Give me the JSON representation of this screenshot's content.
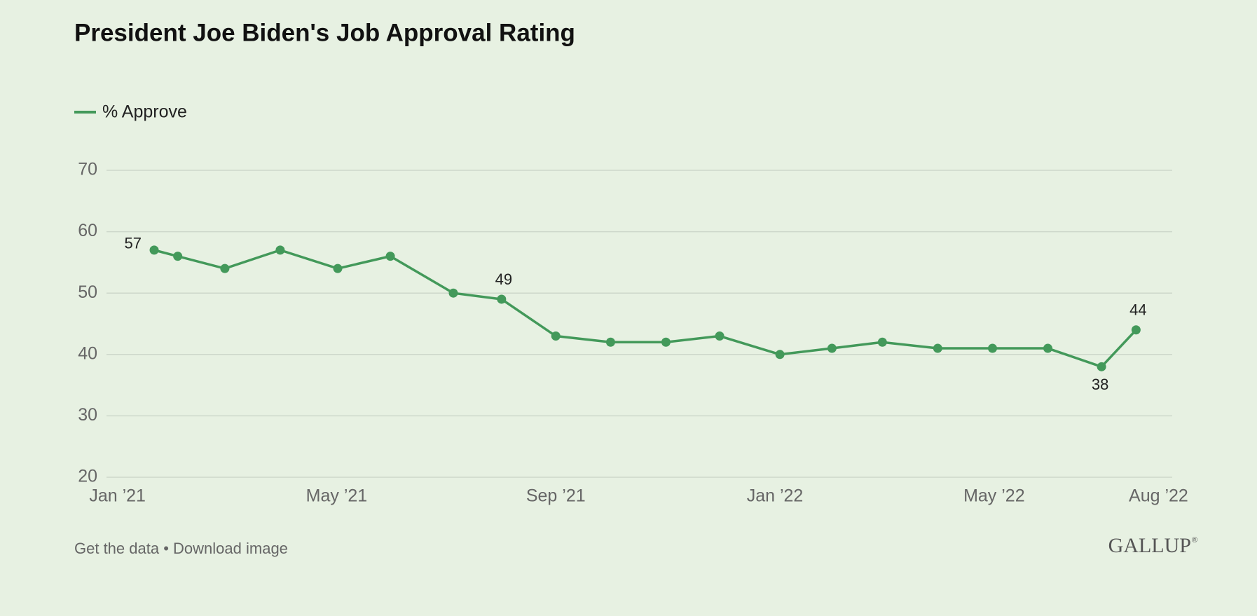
{
  "chart_data": {
    "type": "line",
    "title": "President Joe Biden's Job Approval Rating",
    "x": [
      0.67,
      1.1,
      1.96,
      2.97,
      4.02,
      4.98,
      6.13,
      7.01,
      8.0,
      9.0,
      10.01,
      10.99,
      12.09,
      13.04,
      13.96,
      14.97,
      15.97,
      16.98,
      17.96,
      18.59
    ],
    "series": [
      {
        "name": "% Approve",
        "color": "#43995a",
        "values": [
          57,
          56,
          54,
          57,
          54,
          56,
          50,
          49,
          43,
          42,
          42,
          43,
          40,
          41,
          42,
          41,
          41,
          41,
          38,
          44
        ]
      }
    ],
    "labeled_indices": [
      0,
      7,
      18,
      19
    ],
    "xlim": [
      -0.2,
      19.25
    ],
    "xticks": [
      {
        "value": 0,
        "label": "Jan ’21"
      },
      {
        "value": 4,
        "label": "May ’21"
      },
      {
        "value": 8,
        "label": "Sep ’21"
      },
      {
        "value": 12,
        "label": "Jan ’22"
      },
      {
        "value": 16,
        "label": "May ’22"
      },
      {
        "value": 19,
        "label": "Aug ’22"
      }
    ],
    "ylim": [
      20,
      70
    ],
    "yticks": [
      20,
      30,
      40,
      50,
      60,
      70
    ],
    "grid": true
  },
  "footer": {
    "links": [
      "Get the data",
      "Download image"
    ],
    "separator": "•",
    "logo": "GALLUP",
    "logo_mark": "®"
  }
}
